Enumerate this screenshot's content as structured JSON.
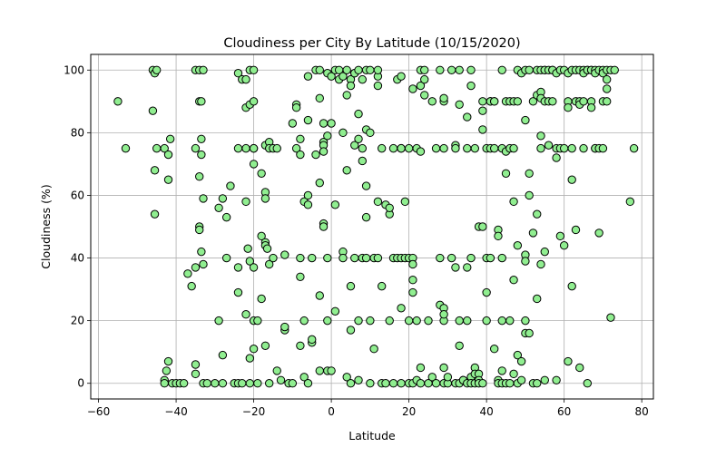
{
  "chart_data": {
    "type": "scatter",
    "title": "Cloudiness per City By Latitude (10/15/2020)",
    "xlabel": "Latitude",
    "ylabel": "Cloudiness (%)",
    "xlim": [
      -62,
      83
    ],
    "ylim": [
      -5,
      105
    ],
    "xticks": [
      -60,
      -40,
      -20,
      0,
      20,
      40,
      60,
      80
    ],
    "yticks": [
      0,
      20,
      40,
      60,
      80,
      100
    ],
    "grid": true,
    "marker_color": "#90ee90",
    "marker_edge_color": "#000000",
    "points": [
      [
        -55,
        90
      ],
      [
        -53,
        75
      ],
      [
        -46,
        100
      ],
      [
        -45.5,
        99
      ],
      [
        -45,
        100
      ],
      [
        -46,
        87
      ],
      [
        -45,
        75
      ],
      [
        -45.5,
        68
      ],
      [
        -45.5,
        54
      ],
      [
        -43,
        75
      ],
      [
        -42,
        73
      ],
      [
        -41.5,
        78
      ],
      [
        -42,
        65
      ],
      [
        -43,
        1
      ],
      [
        -43,
        0
      ],
      [
        -42.5,
        4
      ],
      [
        -42,
        7
      ],
      [
        -41,
        0
      ],
      [
        -40,
        0
      ],
      [
        -39,
        0
      ],
      [
        -38,
        0
      ],
      [
        -37,
        35
      ],
      [
        -35,
        100
      ],
      [
        -34,
        100
      ],
      [
        -33,
        100
      ],
      [
        -34,
        90
      ],
      [
        -33.5,
        90
      ],
      [
        -35,
        75
      ],
      [
        -33.5,
        78
      ],
      [
        -33.5,
        73
      ],
      [
        -34,
        66
      ],
      [
        -33,
        59
      ],
      [
        -34,
        50
      ],
      [
        -34,
        49
      ],
      [
        -33.5,
        42
      ],
      [
        -35,
        37
      ],
      [
        -33,
        38
      ],
      [
        -36,
        31
      ],
      [
        -35,
        6
      ],
      [
        -35,
        3
      ],
      [
        -33,
        0
      ],
      [
        -32,
        0
      ],
      [
        -30,
        0
      ],
      [
        -29,
        56
      ],
      [
        -28,
        59
      ],
      [
        -29,
        20
      ],
      [
        -28,
        9
      ],
      [
        -28,
        0
      ],
      [
        -27,
        53
      ],
      [
        -27,
        40
      ],
      [
        -26,
        63
      ],
      [
        -25,
        0
      ],
      [
        -24,
        29
      ],
      [
        -24,
        37
      ],
      [
        -24,
        0
      ],
      [
        -23,
        0
      ],
      [
        -24,
        99
      ],
      [
        -24,
        75
      ],
      [
        -23,
        97
      ],
      [
        -22,
        97
      ],
      [
        -22,
        88
      ],
      [
        -22,
        75
      ],
      [
        -21,
        89
      ],
      [
        -21,
        100
      ],
      [
        -20,
        100
      ],
      [
        -20,
        90
      ],
      [
        -20,
        75
      ],
      [
        -20,
        70
      ],
      [
        -22,
        58
      ],
      [
        -21.5,
        43
      ],
      [
        -21,
        39
      ],
      [
        -22,
        22
      ],
      [
        -21,
        8
      ],
      [
        -21,
        0
      ],
      [
        -20,
        37
      ],
      [
        -20,
        20
      ],
      [
        -19,
        20
      ],
      [
        -20,
        11
      ],
      [
        -19,
        0
      ],
      [
        -20,
        75
      ],
      [
        -18,
        67
      ],
      [
        -18,
        47
      ],
      [
        -17,
        45
      ],
      [
        -17,
        44
      ],
      [
        -16.5,
        43
      ],
      [
        -16,
        38
      ],
      [
        -17,
        61
      ],
      [
        -17,
        59
      ],
      [
        -18,
        27
      ],
      [
        -17,
        12
      ],
      [
        -16,
        0
      ],
      [
        -15,
        40
      ],
      [
        -14,
        4
      ],
      [
        -13,
        1
      ],
      [
        -17,
        76
      ],
      [
        -16,
        77
      ],
      [
        -16,
        75
      ],
      [
        -15,
        75
      ],
      [
        -14,
        75
      ],
      [
        -12,
        41
      ],
      [
        -12,
        17
      ],
      [
        -12,
        18
      ],
      [
        -11,
        0
      ],
      [
        -10,
        0
      ],
      [
        -10,
        83
      ],
      [
        -9,
        89
      ],
      [
        -9,
        88
      ],
      [
        -9,
        75
      ],
      [
        -8,
        78
      ],
      [
        -8,
        73
      ],
      [
        -8,
        40
      ],
      [
        -8,
        34
      ],
      [
        -7,
        20
      ],
      [
        -8,
        12
      ],
      [
        -7,
        2
      ],
      [
        -6,
        0
      ],
      [
        -7,
        58
      ],
      [
        -6,
        60
      ],
      [
        -6,
        57
      ],
      [
        -6,
        84
      ],
      [
        -6,
        98
      ],
      [
        -5,
        40
      ],
      [
        -5,
        13
      ],
      [
        -5,
        14
      ],
      [
        -4,
        73
      ],
      [
        -4,
        100
      ],
      [
        -3,
        100
      ],
      [
        -3,
        91
      ],
      [
        -3,
        64
      ],
      [
        -3,
        28
      ],
      [
        -3,
        4
      ],
      [
        -2,
        77
      ],
      [
        -2,
        83
      ],
      [
        -2,
        76
      ],
      [
        -2,
        74
      ],
      [
        -2,
        51
      ],
      [
        -2,
        50
      ],
      [
        -1,
        99
      ],
      [
        -1,
        40
      ],
      [
        -1,
        79
      ],
      [
        -1,
        20
      ],
      [
        -1,
        4
      ],
      [
        0,
        83
      ],
      [
        0,
        98
      ],
      [
        0,
        4
      ],
      [
        1,
        100
      ],
      [
        1,
        57
      ],
      [
        1,
        23
      ],
      [
        2,
        97
      ],
      [
        2,
        100
      ],
      [
        3,
        98
      ],
      [
        3,
        80
      ],
      [
        3,
        42
      ],
      [
        3,
        40
      ],
      [
        4,
        92
      ],
      [
        4,
        68
      ],
      [
        4,
        2
      ],
      [
        4,
        100
      ],
      [
        5,
        97
      ],
      [
        5,
        95
      ],
      [
        5,
        31
      ],
      [
        5,
        17
      ],
      [
        5,
        0
      ],
      [
        6,
        99
      ],
      [
        6,
        99
      ],
      [
        6,
        76
      ],
      [
        6,
        40
      ],
      [
        7,
        86
      ],
      [
        7,
        78
      ],
      [
        7,
        20
      ],
      [
        7,
        100
      ],
      [
        7,
        1
      ],
      [
        8,
        97
      ],
      [
        8,
        75
      ],
      [
        8,
        71
      ],
      [
        8,
        40
      ],
      [
        9,
        100
      ],
      [
        9,
        81
      ],
      [
        9,
        63
      ],
      [
        9,
        53
      ],
      [
        9,
        40
      ],
      [
        10,
        100
      ],
      [
        10,
        80
      ],
      [
        10,
        20
      ],
      [
        10,
        0
      ],
      [
        11,
        11
      ],
      [
        11,
        40
      ],
      [
        12,
        98
      ],
      [
        12,
        95
      ],
      [
        12,
        100
      ],
      [
        12,
        58
      ],
      [
        12,
        40
      ],
      [
        13,
        75
      ],
      [
        13,
        31
      ],
      [
        13,
        0
      ],
      [
        14,
        57
      ],
      [
        14,
        0
      ],
      [
        15,
        54
      ],
      [
        15,
        56
      ],
      [
        15,
        20
      ],
      [
        16,
        40
      ],
      [
        16,
        75
      ],
      [
        16,
        0
      ],
      [
        17,
        40
      ],
      [
        17,
        97
      ],
      [
        18,
        98
      ],
      [
        18,
        75
      ],
      [
        18,
        75
      ],
      [
        18,
        40
      ],
      [
        18,
        24
      ],
      [
        18,
        0
      ],
      [
        19,
        58
      ],
      [
        19,
        40
      ],
      [
        20,
        75
      ],
      [
        20,
        20
      ],
      [
        20,
        0
      ],
      [
        20,
        40
      ],
      [
        21,
        94
      ],
      [
        21,
        40
      ],
      [
        21,
        38
      ],
      [
        21,
        33
      ],
      [
        21,
        29
      ],
      [
        21,
        0
      ],
      [
        22,
        75
      ],
      [
        22,
        20
      ],
      [
        22,
        1
      ],
      [
        23,
        74
      ],
      [
        23,
        95
      ],
      [
        23,
        100
      ],
      [
        23,
        5
      ],
      [
        23,
        0
      ],
      [
        24,
        92
      ],
      [
        24,
        100
      ],
      [
        24,
        97
      ],
      [
        25,
        20
      ],
      [
        25,
        0
      ],
      [
        26,
        90
      ],
      [
        26,
        2
      ],
      [
        27,
        75
      ],
      [
        27,
        0
      ],
      [
        28,
        100
      ],
      [
        28,
        40
      ],
      [
        28,
        25
      ],
      [
        29,
        90
      ],
      [
        29,
        91
      ],
      [
        29,
        75
      ],
      [
        29,
        20
      ],
      [
        29,
        24
      ],
      [
        29,
        22
      ],
      [
        29,
        5
      ],
      [
        29,
        0
      ],
      [
        30,
        0
      ],
      [
        30,
        2
      ],
      [
        31,
        40
      ],
      [
        31,
        100
      ],
      [
        32,
        76
      ],
      [
        32,
        75
      ],
      [
        32,
        37
      ],
      [
        32,
        0
      ],
      [
        33,
        100
      ],
      [
        33,
        89
      ],
      [
        33,
        20
      ],
      [
        33,
        12
      ],
      [
        33,
        0
      ],
      [
        34,
        1
      ],
      [
        34,
        1
      ],
      [
        35,
        85
      ],
      [
        35,
        75
      ],
      [
        35,
        37
      ],
      [
        35,
        20
      ],
      [
        35,
        0
      ],
      [
        36,
        100
      ],
      [
        36,
        95
      ],
      [
        36,
        40
      ],
      [
        36,
        2
      ],
      [
        36,
        0
      ],
      [
        37,
        5
      ],
      [
        37,
        3
      ],
      [
        37,
        0
      ],
      [
        37,
        75
      ],
      [
        38,
        50
      ],
      [
        38,
        3
      ],
      [
        38,
        1
      ],
      [
        38,
        0
      ],
      [
        39,
        90
      ],
      [
        39,
        87
      ],
      [
        39,
        81
      ],
      [
        39,
        50
      ],
      [
        39,
        0
      ],
      [
        40,
        75
      ],
      [
        40,
        40
      ],
      [
        40,
        20
      ],
      [
        40,
        29
      ],
      [
        41,
        40
      ],
      [
        41,
        90
      ],
      [
        41,
        90
      ],
      [
        41,
        75
      ],
      [
        42,
        90
      ],
      [
        42,
        90
      ],
      [
        42,
        75
      ],
      [
        42,
        11
      ],
      [
        43,
        49
      ],
      [
        43,
        47
      ],
      [
        43,
        1
      ],
      [
        43,
        0
      ],
      [
        44,
        100
      ],
      [
        44,
        75
      ],
      [
        44,
        40
      ],
      [
        44,
        20
      ],
      [
        44,
        4
      ],
      [
        44,
        0
      ],
      [
        45,
        90
      ],
      [
        45,
        74
      ],
      [
        45,
        67
      ],
      [
        45,
        0
      ],
      [
        46,
        75
      ],
      [
        46,
        90
      ],
      [
        46,
        20
      ],
      [
        46,
        0
      ],
      [
        47,
        90
      ],
      [
        47,
        75
      ],
      [
        47,
        58
      ],
      [
        47,
        33
      ],
      [
        47,
        3
      ],
      [
        48,
        100
      ],
      [
        48,
        90
      ],
      [
        48,
        44
      ],
      [
        48,
        9
      ],
      [
        48,
        0
      ],
      [
        49,
        99
      ],
      [
        49,
        7
      ],
      [
        49,
        1
      ],
      [
        50,
        100
      ],
      [
        50,
        84
      ],
      [
        50,
        41
      ],
      [
        50,
        39
      ],
      [
        50,
        20
      ],
      [
        50,
        16
      ],
      [
        51,
        100
      ],
      [
        51,
        67
      ],
      [
        51,
        60
      ],
      [
        51,
        16
      ],
      [
        52,
        90
      ],
      [
        52,
        48
      ],
      [
        52,
        0
      ],
      [
        53,
        100
      ],
      [
        53,
        92
      ],
      [
        53,
        54
      ],
      [
        53,
        27
      ],
      [
        53,
        0
      ],
      [
        54,
        100
      ],
      [
        54,
        93
      ],
      [
        54,
        91
      ],
      [
        54,
        79
      ],
      [
        54,
        75
      ],
      [
        54,
        38
      ],
      [
        55,
        100
      ],
      [
        55,
        100
      ],
      [
        55,
        90
      ],
      [
        55,
        42
      ],
      [
        55,
        1
      ],
      [
        56,
        100
      ],
      [
        56,
        90
      ],
      [
        56,
        76
      ],
      [
        57,
        100
      ],
      [
        57,
        100
      ],
      [
        57,
        90
      ],
      [
        58,
        99
      ],
      [
        58,
        75
      ],
      [
        58,
        72
      ],
      [
        58,
        1
      ],
      [
        59,
        100
      ],
      [
        59,
        75
      ],
      [
        59,
        47
      ],
      [
        60,
        100
      ],
      [
        60,
        75
      ],
      [
        60,
        44
      ],
      [
        61,
        99
      ],
      [
        61,
        90
      ],
      [
        61,
        88
      ],
      [
        61,
        7
      ],
      [
        62,
        100
      ],
      [
        62,
        75
      ],
      [
        62,
        65
      ],
      [
        62,
        31
      ],
      [
        63,
        100
      ],
      [
        63,
        90
      ],
      [
        63,
        49
      ],
      [
        64,
        100
      ],
      [
        64,
        90
      ],
      [
        64,
        89
      ],
      [
        64,
        5
      ],
      [
        65,
        100
      ],
      [
        65,
        99
      ],
      [
        65,
        90
      ],
      [
        65,
        75
      ],
      [
        66,
        100
      ],
      [
        66,
        100
      ],
      [
        66,
        0
      ],
      [
        67,
        100
      ],
      [
        67,
        100
      ],
      [
        67,
        90
      ],
      [
        67,
        88
      ],
      [
        68,
        100
      ],
      [
        68,
        99
      ],
      [
        68,
        75
      ],
      [
        68,
        75
      ],
      [
        69,
        100
      ],
      [
        69,
        75
      ],
      [
        69,
        48
      ],
      [
        70,
        100
      ],
      [
        70,
        99
      ],
      [
        70,
        90
      ],
      [
        70,
        75
      ],
      [
        71,
        100
      ],
      [
        71,
        90
      ],
      [
        71,
        94
      ],
      [
        71,
        97
      ],
      [
        72,
        100
      ],
      [
        72,
        21
      ],
      [
        73,
        100
      ],
      [
        77,
        58
      ],
      [
        78,
        75
      ]
    ]
  }
}
